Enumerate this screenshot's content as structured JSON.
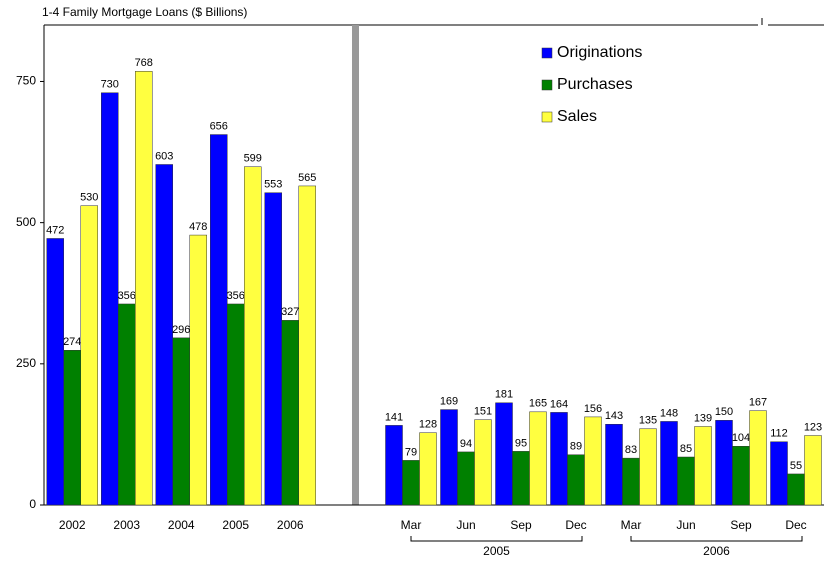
{
  "chart_data": [
    {
      "type": "bar",
      "title": "1-4 Family Mortgage Loans ($ Billions)",
      "categories": [
        "2002",
        "2003",
        "2004",
        "2005",
        "2006"
      ],
      "ylim": [
        0,
        850
      ],
      "yticks": [
        0,
        250,
        500,
        750
      ],
      "series": [
        {
          "name": "Originations",
          "color": "#0000ff",
          "values": [
            472,
            730,
            603,
            656,
            553
          ]
        },
        {
          "name": "Purchases",
          "color": "#008000",
          "values": [
            274,
            356,
            296,
            356,
            327
          ]
        },
        {
          "name": "Sales",
          "color": "#ffff40",
          "values": [
            530,
            768,
            478,
            599,
            565
          ]
        }
      ]
    },
    {
      "type": "bar",
      "categories": [
        "Mar",
        "Jun",
        "Sep",
        "Dec",
        "Mar",
        "Jun",
        "Sep",
        "Dec"
      ],
      "groups": [
        "2005",
        "2006"
      ],
      "ylim": [
        0,
        850
      ],
      "series": [
        {
          "color": "#0000ff",
          "values": [
            141,
            169,
            181,
            164,
            143,
            148,
            150,
            112
          ]
        },
        {
          "color": "#008000",
          "values": [
            79,
            94,
            95,
            89,
            83,
            85,
            104,
            55
          ]
        },
        {
          "color": "#ffff40",
          "values": [
            128,
            151,
            165,
            156,
            135,
            139,
            167,
            123
          ]
        }
      ]
    }
  ]
}
